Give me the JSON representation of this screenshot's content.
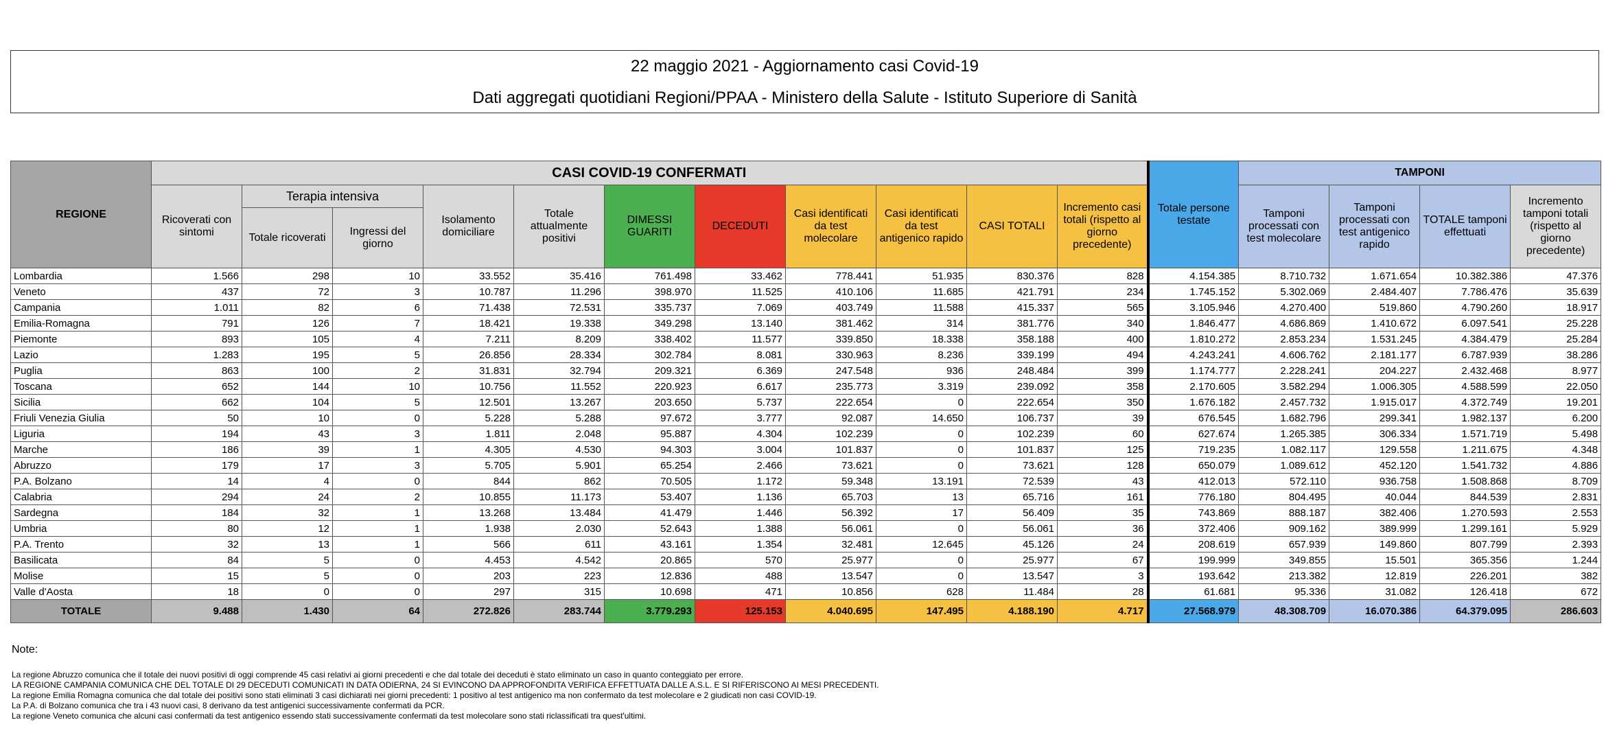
{
  "header": {
    "title": "22 maggio 2021 - Aggiornamento casi Covid-19",
    "subtitle": "Dati aggregati quotidiani Regioni/PPAA - Ministero della Salute - Istituto Superiore di Sanità"
  },
  "table": {
    "group_confirmed": "CASI COVID-19 CONFERMATI",
    "group_icu": "Terapia intensiva",
    "group_tamponi": "TAMPONI",
    "columns": [
      "REGIONE",
      "Ricoverati con sintomi",
      "Totale ricoverati",
      "Ingressi del giorno",
      "Isolamento domiciliare",
      "Totale attualmente positivi",
      "DIMESSI GUARITI",
      "DECEDUTI",
      "Casi identificati da test molecolare",
      "Casi identificati da test antigenico rapido",
      "CASI TOTALI",
      "Incremento casi totali (rispetto al giorno precedente)",
      "Totale persone testate",
      "Tamponi processati con test molecolare",
      "Tamponi processati con test antigenico rapido",
      "TOTALE tamponi effettuati",
      "Incremento tamponi totali (rispetto al giorno precedente)"
    ],
    "rows": [
      [
        "Lombardia",
        "1.566",
        "298",
        "10",
        "33.552",
        "35.416",
        "761.498",
        "33.462",
        "778.441",
        "51.935",
        "830.376",
        "828",
        "4.154.385",
        "8.710.732",
        "1.671.654",
        "10.382.386",
        "47.376"
      ],
      [
        "Veneto",
        "437",
        "72",
        "3",
        "10.787",
        "11.296",
        "398.970",
        "11.525",
        "410.106",
        "11.685",
        "421.791",
        "234",
        "1.745.152",
        "5.302.069",
        "2.484.407",
        "7.786.476",
        "35.639"
      ],
      [
        "Campania",
        "1.011",
        "82",
        "6",
        "71.438",
        "72.531",
        "335.737",
        "7.069",
        "403.749",
        "11.588",
        "415.337",
        "565",
        "3.105.946",
        "4.270.400",
        "519.860",
        "4.790.260",
        "18.917"
      ],
      [
        "Emilia-Romagna",
        "791",
        "126",
        "7",
        "18.421",
        "19.338",
        "349.298",
        "13.140",
        "381.462",
        "314",
        "381.776",
        "340",
        "1.846.477",
        "4.686.869",
        "1.410.672",
        "6.097.541",
        "25.228"
      ],
      [
        "Piemonte",
        "893",
        "105",
        "4",
        "7.211",
        "8.209",
        "338.402",
        "11.577",
        "339.850",
        "18.338",
        "358.188",
        "400",
        "1.810.272",
        "2.853.234",
        "1.531.245",
        "4.384.479",
        "25.284"
      ],
      [
        "Lazio",
        "1.283",
        "195",
        "5",
        "26.856",
        "28.334",
        "302.784",
        "8.081",
        "330.963",
        "8.236",
        "339.199",
        "494",
        "4.243.241",
        "4.606.762",
        "2.181.177",
        "6.787.939",
        "38.286"
      ],
      [
        "Puglia",
        "863",
        "100",
        "2",
        "31.831",
        "32.794",
        "209.321",
        "6.369",
        "247.548",
        "936",
        "248.484",
        "399",
        "1.174.777",
        "2.228.241",
        "204.227",
        "2.432.468",
        "8.977"
      ],
      [
        "Toscana",
        "652",
        "144",
        "10",
        "10.756",
        "11.552",
        "220.923",
        "6.617",
        "235.773",
        "3.319",
        "239.092",
        "358",
        "2.170.605",
        "3.582.294",
        "1.006.305",
        "4.588.599",
        "22.050"
      ],
      [
        "Sicilia",
        "662",
        "104",
        "5",
        "12.501",
        "13.267",
        "203.650",
        "5.737",
        "222.654",
        "0",
        "222.654",
        "350",
        "1.676.182",
        "2.457.732",
        "1.915.017",
        "4.372.749",
        "19.201"
      ],
      [
        "Friuli Venezia Giulia",
        "50",
        "10",
        "0",
        "5.228",
        "5.288",
        "97.672",
        "3.777",
        "92.087",
        "14.650",
        "106.737",
        "39",
        "676.545",
        "1.682.796",
        "299.341",
        "1.982.137",
        "6.200"
      ],
      [
        "Liguria",
        "194",
        "43",
        "3",
        "1.811",
        "2.048",
        "95.887",
        "4.304",
        "102.239",
        "0",
        "102.239",
        "60",
        "627.674",
        "1.265.385",
        "306.334",
        "1.571.719",
        "5.498"
      ],
      [
        "Marche",
        "186",
        "39",
        "1",
        "4.305",
        "4.530",
        "94.303",
        "3.004",
        "101.837",
        "0",
        "101.837",
        "125",
        "719.235",
        "1.082.117",
        "129.558",
        "1.211.675",
        "4.348"
      ],
      [
        "Abruzzo",
        "179",
        "17",
        "3",
        "5.705",
        "5.901",
        "65.254",
        "2.466",
        "73.621",
        "0",
        "73.621",
        "128",
        "650.079",
        "1.089.612",
        "452.120",
        "1.541.732",
        "4.886"
      ],
      [
        "P.A. Bolzano",
        "14",
        "4",
        "0",
        "844",
        "862",
        "70.505",
        "1.172",
        "59.348",
        "13.191",
        "72.539",
        "43",
        "412.013",
        "572.110",
        "936.758",
        "1.508.868",
        "8.709"
      ],
      [
        "Calabria",
        "294",
        "24",
        "2",
        "10.855",
        "11.173",
        "53.407",
        "1.136",
        "65.703",
        "13",
        "65.716",
        "161",
        "776.180",
        "804.495",
        "40.044",
        "844.539",
        "2.831"
      ],
      [
        "Sardegna",
        "184",
        "32",
        "1",
        "13.268",
        "13.484",
        "41.479",
        "1.446",
        "56.392",
        "17",
        "56.409",
        "35",
        "743.869",
        "888.187",
        "382.406",
        "1.270.593",
        "2.553"
      ],
      [
        "Umbria",
        "80",
        "12",
        "1",
        "1.938",
        "2.030",
        "52.643",
        "1.388",
        "56.061",
        "0",
        "56.061",
        "36",
        "372.406",
        "909.162",
        "389.999",
        "1.299.161",
        "5.929"
      ],
      [
        "P.A. Trento",
        "32",
        "13",
        "1",
        "566",
        "611",
        "43.161",
        "1.354",
        "32.481",
        "12.645",
        "45.126",
        "24",
        "208.619",
        "657.939",
        "149.860",
        "807.799",
        "2.393"
      ],
      [
        "Basilicata",
        "84",
        "5",
        "0",
        "4.453",
        "4.542",
        "20.865",
        "570",
        "25.977",
        "0",
        "25.977",
        "67",
        "199.999",
        "349.855",
        "15.501",
        "365.356",
        "1.244"
      ],
      [
        "Molise",
        "15",
        "5",
        "0",
        "203",
        "223",
        "12.836",
        "488",
        "13.547",
        "0",
        "13.547",
        "3",
        "193.642",
        "213.382",
        "12.819",
        "226.201",
        "382"
      ],
      [
        "Valle d'Aosta",
        "18",
        "0",
        "0",
        "297",
        "315",
        "10.698",
        "471",
        "10.856",
        "628",
        "11.484",
        "28",
        "61.681",
        "95.336",
        "31.082",
        "126.418",
        "672"
      ]
    ],
    "total": [
      "TOTALE",
      "9.488",
      "1.430",
      "64",
      "272.826",
      "283.744",
      "3.779.293",
      "125.153",
      "4.040.695",
      "147.495",
      "4.188.190",
      "4.717",
      "27.568.979",
      "48.308.709",
      "16.070.386",
      "64.379.095",
      "286.603"
    ]
  },
  "notes": {
    "label": "Note:",
    "lines": [
      "La regione Abruzzo comunica che il totale dei nuovi positivi di oggi comprende 45 casi relativi ai giorni precedenti e che dal totale dei deceduti è stato eliminato un caso in quanto conteggiato per errore.",
      "LA REGIONE CAMPANIA COMUNICA CHE DEL TOTALE DI 29 DECEDUTI COMUNICATI IN DATA ODIERNA, 24 SI EVINCONO DA APPROFONDITA VERIFICA EFFETTUATA DALLE A.S.L. E SI RIFERISCONO AI MESI PRECEDENTI.",
      "La regione Emilia Romagna comunica che dal totale dei positivi sono stati eliminati 3 casi dichiarati nei giorni precedenti: 1 positivo al test antigenico ma non confermato da test molecolare e 2 giudicati non casi COVID-19.",
      "La P.A. di Bolzano comunica che tra i 43 nuovi casi, 8 derivano da test antigenici successivamente confermati da PCR.",
      "La regione Veneto comunica che alcuni casi confermati da test antigenico essendo stati successivamente confermati da test molecolare sono stati riclassificati tra quest'ultimi."
    ]
  }
}
